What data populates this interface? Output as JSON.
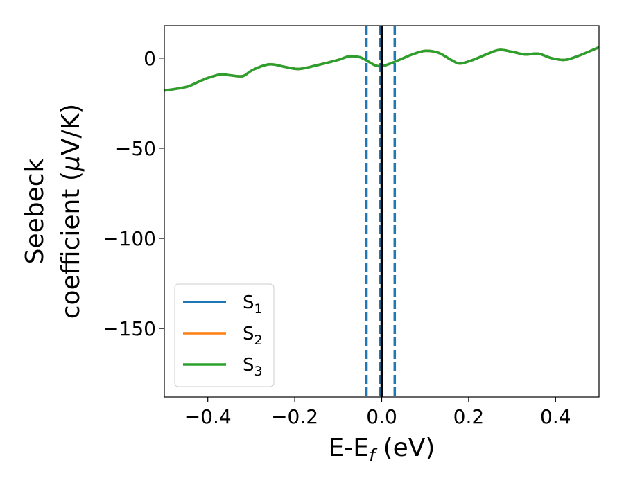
{
  "chart_data": {
    "type": "line",
    "xlabel": {
      "main": "E-E",
      "sub": "f",
      "suffix": " (eV)"
    },
    "ylabel": {
      "line1": "Seebeck",
      "line2": "coefficient  (",
      "mu": "μ",
      "line2_suffix": "V/K)"
    },
    "xlim": [
      -0.5,
      0.5
    ],
    "ylim": [
      -188,
      18
    ],
    "xticks": [
      -0.4,
      -0.2,
      0.0,
      0.2,
      0.4
    ],
    "xtick_labels": [
      "−0.4",
      "−0.2",
      "0.0",
      "0.2",
      "0.4"
    ],
    "yticks": [
      0,
      -50,
      -100,
      -150
    ],
    "ytick_labels": [
      "0",
      "−50",
      "−100",
      "−150"
    ],
    "grid": false,
    "legend_position": "lower-left",
    "series": [
      {
        "name": "S",
        "sub": "1",
        "color": "#1f77b4",
        "x": [
          -0.5,
          -0.45,
          -0.42,
          -0.4,
          -0.37,
          -0.35,
          -0.32,
          -0.3,
          -0.27,
          -0.25,
          -0.22,
          -0.19,
          -0.15,
          -0.1,
          -0.075,
          -0.05,
          -0.03,
          -0.015,
          0.0,
          0.02,
          0.05,
          0.07,
          0.1,
          0.13,
          0.16,
          0.18,
          0.21,
          0.24,
          0.27,
          0.3,
          0.33,
          0.36,
          0.39,
          0.42,
          0.45,
          0.5
        ],
        "y": [
          -18,
          -16,
          -13,
          -11,
          -9,
          -9.5,
          -10,
          -7,
          -4,
          -3.5,
          -5,
          -6,
          -4,
          -1,
          1,
          0.5,
          -2,
          -4,
          -4.5,
          -3,
          0,
          2,
          4,
          3,
          -1,
          -3,
          -1,
          2,
          4.5,
          3.5,
          2,
          2.5,
          0,
          -1,
          1,
          6
        ]
      },
      {
        "name": "S",
        "sub": "2",
        "color": "#ff7f0e",
        "x": [
          -0.5,
          -0.45,
          -0.42,
          -0.4,
          -0.37,
          -0.35,
          -0.32,
          -0.3,
          -0.27,
          -0.25,
          -0.22,
          -0.19,
          -0.15,
          -0.1,
          -0.075,
          -0.05,
          -0.03,
          -0.015,
          0.0,
          0.02,
          0.05,
          0.07,
          0.1,
          0.13,
          0.16,
          0.18,
          0.21,
          0.24,
          0.27,
          0.3,
          0.33,
          0.36,
          0.39,
          0.42,
          0.45,
          0.5
        ],
        "y": [
          -18,
          -16,
          -13,
          -11,
          -9,
          -9.5,
          -10,
          -7,
          -4,
          -3.5,
          -5,
          -6,
          -4,
          -1,
          1,
          0.5,
          -2,
          -4,
          -4.5,
          -3,
          0,
          2,
          4,
          3,
          -1,
          -3,
          -1,
          2,
          4.5,
          3.5,
          2,
          2.5,
          0,
          -1,
          1,
          6
        ]
      },
      {
        "name": "S",
        "sub": "3",
        "color": "#2ca02c",
        "x": [
          -0.5,
          -0.45,
          -0.42,
          -0.4,
          -0.37,
          -0.35,
          -0.32,
          -0.3,
          -0.27,
          -0.25,
          -0.22,
          -0.19,
          -0.15,
          -0.1,
          -0.075,
          -0.05,
          -0.03,
          -0.015,
          0.0,
          0.02,
          0.05,
          0.07,
          0.1,
          0.13,
          0.16,
          0.18,
          0.21,
          0.24,
          0.27,
          0.3,
          0.33,
          0.36,
          0.39,
          0.42,
          0.45,
          0.5
        ],
        "y": [
          -18,
          -16,
          -13,
          -11,
          -9,
          -9.5,
          -10,
          -7,
          -4,
          -3.5,
          -5,
          -6,
          -4,
          -1,
          1,
          0.5,
          -2,
          -4,
          -4.5,
          -3,
          0,
          2,
          4,
          3,
          -1,
          -3,
          -1,
          2,
          4.5,
          3.5,
          2,
          2.5,
          0,
          -1,
          1,
          6
        ]
      }
    ],
    "vlines": [
      {
        "x": -0.035,
        "style": "dashed",
        "color": "#1f77b4"
      },
      {
        "x": -0.003,
        "style": "dashed",
        "color": "#1f77b4"
      },
      {
        "x": 0.03,
        "style": "dashed",
        "color": "#1f77b4"
      },
      {
        "x": 0.0,
        "style": "solid",
        "color": "#000000"
      }
    ]
  }
}
